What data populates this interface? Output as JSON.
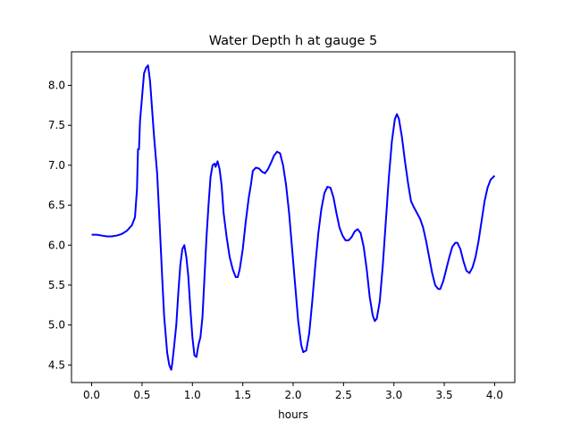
{
  "chart_data": {
    "type": "line",
    "title": "Water Depth h at gauge 5",
    "xlabel": "hours",
    "ylabel": "",
    "xlim": [
      -0.2,
      4.2
    ],
    "ylim": [
      4.28,
      8.42
    ],
    "xticks": [
      "0.0",
      "0.5",
      "1.0",
      "1.5",
      "2.0",
      "2.5",
      "3.0",
      "3.5",
      "4.0"
    ],
    "yticks": [
      "4.5",
      "5.0",
      "5.5",
      "6.0",
      "6.5",
      "7.0",
      "7.5",
      "8.0"
    ],
    "grid": false,
    "series": [
      {
        "color": "#0000ff",
        "points": [
          [
            0.0,
            6.13
          ],
          [
            0.05,
            6.13
          ],
          [
            0.1,
            6.12
          ],
          [
            0.15,
            6.11
          ],
          [
            0.2,
            6.11
          ],
          [
            0.25,
            6.12
          ],
          [
            0.3,
            6.14
          ],
          [
            0.35,
            6.18
          ],
          [
            0.4,
            6.25
          ],
          [
            0.43,
            6.35
          ],
          [
            0.45,
            6.7
          ],
          [
            0.46,
            7.2
          ],
          [
            0.47,
            7.2
          ],
          [
            0.48,
            7.55
          ],
          [
            0.5,
            7.85
          ],
          [
            0.52,
            8.15
          ],
          [
            0.54,
            8.22
          ],
          [
            0.56,
            8.25
          ],
          [
            0.58,
            8.05
          ],
          [
            0.6,
            7.7
          ],
          [
            0.62,
            7.35
          ],
          [
            0.65,
            6.9
          ],
          [
            0.67,
            6.4
          ],
          [
            0.7,
            5.6
          ],
          [
            0.72,
            5.1
          ],
          [
            0.75,
            4.65
          ],
          [
            0.77,
            4.5
          ],
          [
            0.79,
            4.44
          ],
          [
            0.8,
            4.52
          ],
          [
            0.82,
            4.75
          ],
          [
            0.84,
            5.0
          ],
          [
            0.86,
            5.4
          ],
          [
            0.88,
            5.75
          ],
          [
            0.9,
            5.95
          ],
          [
            0.92,
            6.0
          ],
          [
            0.94,
            5.85
          ],
          [
            0.96,
            5.6
          ],
          [
            0.98,
            5.2
          ],
          [
            1.0,
            4.85
          ],
          [
            1.02,
            4.62
          ],
          [
            1.04,
            4.6
          ],
          [
            1.06,
            4.75
          ],
          [
            1.08,
            4.85
          ],
          [
            1.1,
            5.1
          ],
          [
            1.12,
            5.6
          ],
          [
            1.14,
            6.1
          ],
          [
            1.16,
            6.5
          ],
          [
            1.18,
            6.85
          ],
          [
            1.2,
            7.0
          ],
          [
            1.22,
            7.02
          ],
          [
            1.23,
            6.98
          ],
          [
            1.25,
            7.05
          ],
          [
            1.27,
            6.95
          ],
          [
            1.29,
            6.75
          ],
          [
            1.31,
            6.4
          ],
          [
            1.34,
            6.1
          ],
          [
            1.37,
            5.85
          ],
          [
            1.4,
            5.7
          ],
          [
            1.43,
            5.6
          ],
          [
            1.45,
            5.6
          ],
          [
            1.47,
            5.7
          ],
          [
            1.5,
            5.95
          ],
          [
            1.53,
            6.3
          ],
          [
            1.56,
            6.6
          ],
          [
            1.58,
            6.75
          ],
          [
            1.6,
            6.93
          ],
          [
            1.63,
            6.97
          ],
          [
            1.66,
            6.96
          ],
          [
            1.69,
            6.92
          ],
          [
            1.72,
            6.9
          ],
          [
            1.75,
            6.95
          ],
          [
            1.78,
            7.03
          ],
          [
            1.81,
            7.12
          ],
          [
            1.84,
            7.17
          ],
          [
            1.87,
            7.15
          ],
          [
            1.9,
            7.0
          ],
          [
            1.93,
            6.75
          ],
          [
            1.96,
            6.4
          ],
          [
            1.99,
            5.95
          ],
          [
            2.02,
            5.5
          ],
          [
            2.05,
            5.05
          ],
          [
            2.08,
            4.75
          ],
          [
            2.1,
            4.66
          ],
          [
            2.13,
            4.68
          ],
          [
            2.16,
            4.9
          ],
          [
            2.19,
            5.3
          ],
          [
            2.22,
            5.75
          ],
          [
            2.25,
            6.15
          ],
          [
            2.28,
            6.45
          ],
          [
            2.31,
            6.65
          ],
          [
            2.34,
            6.73
          ],
          [
            2.37,
            6.72
          ],
          [
            2.4,
            6.6
          ],
          [
            2.43,
            6.4
          ],
          [
            2.46,
            6.22
          ],
          [
            2.49,
            6.12
          ],
          [
            2.52,
            6.06
          ],
          [
            2.55,
            6.06
          ],
          [
            2.58,
            6.1
          ],
          [
            2.61,
            6.17
          ],
          [
            2.64,
            6.2
          ],
          [
            2.67,
            6.15
          ],
          [
            2.7,
            5.98
          ],
          [
            2.73,
            5.7
          ],
          [
            2.76,
            5.35
          ],
          [
            2.79,
            5.12
          ],
          [
            2.81,
            5.05
          ],
          [
            2.83,
            5.08
          ],
          [
            2.86,
            5.3
          ],
          [
            2.89,
            5.75
          ],
          [
            2.92,
            6.3
          ],
          [
            2.95,
            6.85
          ],
          [
            2.98,
            7.3
          ],
          [
            3.01,
            7.58
          ],
          [
            3.03,
            7.64
          ],
          [
            3.05,
            7.58
          ],
          [
            3.08,
            7.35
          ],
          [
            3.11,
            7.05
          ],
          [
            3.14,
            6.78
          ],
          [
            3.17,
            6.55
          ],
          [
            3.2,
            6.47
          ],
          [
            3.23,
            6.4
          ],
          [
            3.26,
            6.33
          ],
          [
            3.29,
            6.22
          ],
          [
            3.32,
            6.05
          ],
          [
            3.35,
            5.85
          ],
          [
            3.38,
            5.65
          ],
          [
            3.41,
            5.5
          ],
          [
            3.44,
            5.45
          ],
          [
            3.46,
            5.45
          ],
          [
            3.49,
            5.55
          ],
          [
            3.52,
            5.7
          ],
          [
            3.55,
            5.85
          ],
          [
            3.58,
            5.98
          ],
          [
            3.61,
            6.03
          ],
          [
            3.63,
            6.03
          ],
          [
            3.66,
            5.95
          ],
          [
            3.69,
            5.8
          ],
          [
            3.72,
            5.68
          ],
          [
            3.75,
            5.65
          ],
          [
            3.78,
            5.72
          ],
          [
            3.81,
            5.85
          ],
          [
            3.84,
            6.05
          ],
          [
            3.87,
            6.3
          ],
          [
            3.9,
            6.55
          ],
          [
            3.93,
            6.72
          ],
          [
            3.96,
            6.82
          ],
          [
            4.0,
            6.87
          ]
        ]
      }
    ]
  }
}
